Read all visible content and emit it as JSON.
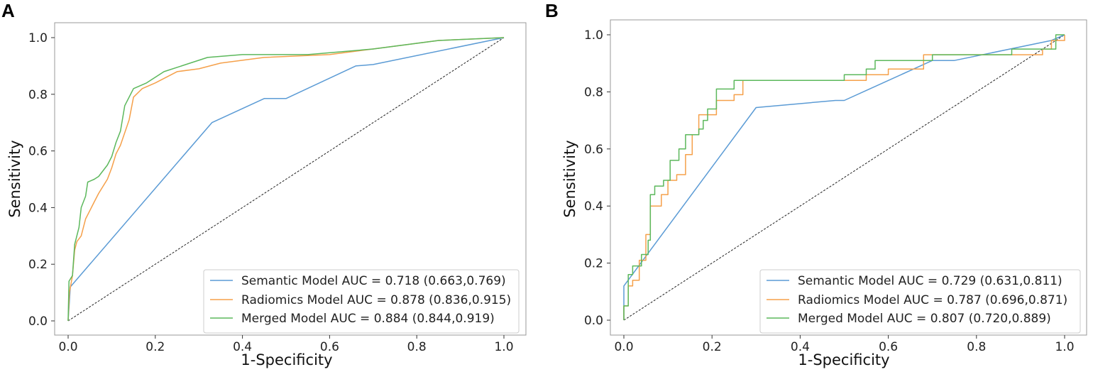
{
  "colors": {
    "semantic": "#5b9bd5",
    "radiomics": "#f5a04a",
    "merged": "#5cb85c",
    "diagonal": "#222222",
    "frame": "#999999"
  },
  "chart_data": [
    {
      "panel": "A",
      "type": "line",
      "xlabel": "1-Specificity",
      "ylabel": "Sensitivity",
      "xlim": [
        0,
        1
      ],
      "ylim": [
        0,
        1
      ],
      "xticks": [
        "0.0",
        "0.2",
        "0.4",
        "0.6",
        "0.8",
        "1.0"
      ],
      "yticks": [
        "0.0",
        "0.2",
        "0.4",
        "0.6",
        "0.8",
        "1.0"
      ],
      "legend_position": "lower-right",
      "diagonal": true,
      "series": [
        {
          "key": "semantic",
          "name": "Semantic Model AUC = 0.718 (0.663,0.769)",
          "points": [
            [
              0,
              0
            ],
            [
              0.005,
              0.12
            ],
            [
              0.33,
              0.7
            ],
            [
              0.45,
              0.785
            ],
            [
              0.5,
              0.785
            ],
            [
              0.66,
              0.9
            ],
            [
              0.7,
              0.905
            ],
            [
              1,
              1
            ]
          ]
        },
        {
          "key": "radiomics",
          "name": "Radiomics Model AUC = 0.878 (0.836,0.915)",
          "points": [
            [
              0,
              0
            ],
            [
              0.003,
              0.1
            ],
            [
              0.01,
              0.16
            ],
            [
              0.015,
              0.25
            ],
            [
              0.02,
              0.28
            ],
            [
              0.03,
              0.3
            ],
            [
              0.035,
              0.33
            ],
            [
              0.04,
              0.36
            ],
            [
              0.06,
              0.42
            ],
            [
              0.07,
              0.45
            ],
            [
              0.09,
              0.5
            ],
            [
              0.1,
              0.54
            ],
            [
              0.11,
              0.59
            ],
            [
              0.12,
              0.62
            ],
            [
              0.14,
              0.71
            ],
            [
              0.15,
              0.79
            ],
            [
              0.17,
              0.82
            ],
            [
              0.2,
              0.84
            ],
            [
              0.25,
              0.88
            ],
            [
              0.3,
              0.89
            ],
            [
              0.35,
              0.91
            ],
            [
              0.45,
              0.93
            ],
            [
              0.6,
              0.94
            ],
            [
              0.75,
              0.97
            ],
            [
              0.85,
              0.99
            ],
            [
              1,
              1
            ]
          ]
        },
        {
          "key": "merged",
          "name": "Merged Model AUC = 0.884 (0.844,0.919)",
          "points": [
            [
              0,
              0
            ],
            [
              0.002,
              0.14
            ],
            [
              0.01,
              0.16
            ],
            [
              0.015,
              0.27
            ],
            [
              0.025,
              0.33
            ],
            [
              0.03,
              0.4
            ],
            [
              0.04,
              0.44
            ],
            [
              0.045,
              0.49
            ],
            [
              0.06,
              0.5
            ],
            [
              0.07,
              0.51
            ],
            [
              0.09,
              0.55
            ],
            [
              0.1,
              0.58
            ],
            [
              0.11,
              0.63
            ],
            [
              0.12,
              0.67
            ],
            [
              0.13,
              0.76
            ],
            [
              0.15,
              0.82
            ],
            [
              0.18,
              0.84
            ],
            [
              0.22,
              0.88
            ],
            [
              0.28,
              0.91
            ],
            [
              0.32,
              0.93
            ],
            [
              0.4,
              0.94
            ],
            [
              0.55,
              0.94
            ],
            [
              0.7,
              0.96
            ],
            [
              0.85,
              0.99
            ],
            [
              1,
              1
            ]
          ]
        }
      ]
    },
    {
      "panel": "B",
      "type": "line",
      "xlabel": "1-Specificity",
      "ylabel": "Sensitivity",
      "xlim": [
        0,
        1
      ],
      "ylim": [
        0,
        1
      ],
      "xticks": [
        "0.0",
        "0.2",
        "0.4",
        "0.6",
        "0.8",
        "1.0"
      ],
      "yticks": [
        "0.0",
        "0.2",
        "0.4",
        "0.6",
        "0.8",
        "1.0"
      ],
      "legend_position": "lower-right",
      "diagonal": true,
      "series": [
        {
          "key": "semantic",
          "name": "Semantic Model AUC = 0.729 (0.631,0.811)",
          "points": [
            [
              0,
              0
            ],
            [
              0,
              0.12
            ],
            [
              0.3,
              0.745
            ],
            [
              0.48,
              0.77
            ],
            [
              0.5,
              0.77
            ],
            [
              0.7,
              0.91
            ],
            [
              0.75,
              0.91
            ],
            [
              0.97,
              0.98
            ],
            [
              1,
              1
            ]
          ]
        },
        {
          "key": "radiomics",
          "name": "Radiomics Model AUC = 0.787 (0.696,0.871)",
          "points": [
            [
              0,
              0
            ],
            [
              0,
              0.05
            ],
            [
              0.01,
              0.05
            ],
            [
              0.01,
              0.12
            ],
            [
              0.02,
              0.12
            ],
            [
              0.02,
              0.14
            ],
            [
              0.035,
              0.14
            ],
            [
              0.035,
              0.21
            ],
            [
              0.05,
              0.21
            ],
            [
              0.05,
              0.3
            ],
            [
              0.06,
              0.3
            ],
            [
              0.06,
              0.4
            ],
            [
              0.085,
              0.4
            ],
            [
              0.085,
              0.44
            ],
            [
              0.1,
              0.44
            ],
            [
              0.1,
              0.49
            ],
            [
              0.12,
              0.49
            ],
            [
              0.12,
              0.51
            ],
            [
              0.14,
              0.51
            ],
            [
              0.14,
              0.58
            ],
            [
              0.155,
              0.58
            ],
            [
              0.155,
              0.65
            ],
            [
              0.17,
              0.65
            ],
            [
              0.17,
              0.72
            ],
            [
              0.21,
              0.72
            ],
            [
              0.21,
              0.77
            ],
            [
              0.25,
              0.77
            ],
            [
              0.25,
              0.79
            ],
            [
              0.27,
              0.79
            ],
            [
              0.27,
              0.84
            ],
            [
              0.55,
              0.84
            ],
            [
              0.55,
              0.86
            ],
            [
              0.6,
              0.86
            ],
            [
              0.6,
              0.88
            ],
            [
              0.68,
              0.88
            ],
            [
              0.68,
              0.93
            ],
            [
              0.95,
              0.93
            ],
            [
              0.95,
              0.95
            ],
            [
              0.97,
              0.95
            ],
            [
              0.97,
              0.98
            ],
            [
              1,
              0.98
            ],
            [
              1,
              1
            ]
          ]
        },
        {
          "key": "merged",
          "name": "Merged Model AUC = 0.807 (0.720,0.889)",
          "points": [
            [
              0,
              0
            ],
            [
              0,
              0.05
            ],
            [
              0.01,
              0.05
            ],
            [
              0.01,
              0.16
            ],
            [
              0.02,
              0.16
            ],
            [
              0.02,
              0.19
            ],
            [
              0.04,
              0.19
            ],
            [
              0.04,
              0.23
            ],
            [
              0.055,
              0.23
            ],
            [
              0.055,
              0.28
            ],
            [
              0.06,
              0.28
            ],
            [
              0.06,
              0.44
            ],
            [
              0.07,
              0.44
            ],
            [
              0.07,
              0.47
            ],
            [
              0.09,
              0.47
            ],
            [
              0.09,
              0.49
            ],
            [
              0.105,
              0.49
            ],
            [
              0.105,
              0.56
            ],
            [
              0.125,
              0.56
            ],
            [
              0.125,
              0.6
            ],
            [
              0.14,
              0.6
            ],
            [
              0.14,
              0.65
            ],
            [
              0.17,
              0.65
            ],
            [
              0.17,
              0.67
            ],
            [
              0.18,
              0.67
            ],
            [
              0.18,
              0.7
            ],
            [
              0.19,
              0.7
            ],
            [
              0.19,
              0.74
            ],
            [
              0.21,
              0.74
            ],
            [
              0.21,
              0.81
            ],
            [
              0.25,
              0.81
            ],
            [
              0.25,
              0.84
            ],
            [
              0.5,
              0.84
            ],
            [
              0.5,
              0.86
            ],
            [
              0.55,
              0.86
            ],
            [
              0.55,
              0.88
            ],
            [
              0.57,
              0.88
            ],
            [
              0.57,
              0.91
            ],
            [
              0.7,
              0.91
            ],
            [
              0.7,
              0.93
            ],
            [
              0.88,
              0.93
            ],
            [
              0.88,
              0.95
            ],
            [
              0.98,
              0.95
            ],
            [
              0.98,
              1
            ],
            [
              1,
              1
            ]
          ]
        }
      ]
    }
  ]
}
